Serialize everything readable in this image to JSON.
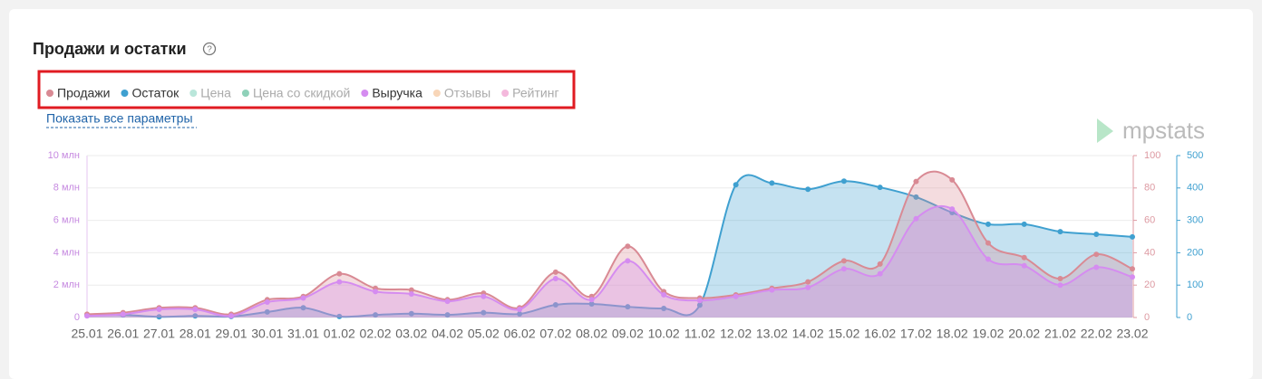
{
  "header": {
    "title": "Продажи и остатки",
    "help": "?",
    "link": "Показать все параметры",
    "logo": "mpstats"
  },
  "chart_data": {
    "type": "area",
    "categories": [
      "25.01",
      "26.01",
      "27.01",
      "28.01",
      "29.01",
      "30.01",
      "31.01",
      "01.02",
      "02.02",
      "03.02",
      "04.02",
      "05.02",
      "06.02",
      "07.02",
      "08.02",
      "09.02",
      "10.02",
      "11.02",
      "12.02",
      "13.02",
      "14.02",
      "15.02",
      "16.02",
      "17.02",
      "18.02",
      "19.02",
      "20.02",
      "21.02",
      "22.02",
      "23.02"
    ],
    "series": [
      {
        "name": "Продажи",
        "color": "#d98a94",
        "active": true,
        "axis": "y2",
        "values": [
          2,
          3,
          6,
          6,
          2,
          11,
          13,
          27,
          18,
          17,
          11,
          15,
          6,
          28,
          13,
          44,
          16,
          12,
          14,
          18,
          22,
          35,
          33,
          84,
          85,
          46,
          37,
          24,
          39,
          30
        ]
      },
      {
        "name": "Остаток",
        "color": "#3fa0d0",
        "active": true,
        "axis": "y3",
        "values": [
          8,
          8,
          2,
          5,
          3,
          17,
          30,
          3,
          8,
          12,
          8,
          15,
          11,
          39,
          42,
          33,
          28,
          38,
          410,
          415,
          396,
          421,
          402,
          372,
          324,
          288,
          288,
          265,
          257,
          249
        ]
      },
      {
        "name": "Цена",
        "color": "#b9e6da",
        "active": false
      },
      {
        "name": "Цена со скидкой",
        "color": "#8fd1b9",
        "active": false
      },
      {
        "name": "Выручка",
        "color": "#d58cf0",
        "active": true,
        "axis": "y",
        "values": [
          100000,
          200000,
          500000,
          500000,
          100000,
          950000,
          1200000,
          2200000,
          1600000,
          1450000,
          1000000,
          1300000,
          500000,
          2400000,
          1100000,
          3500000,
          1400000,
          1050000,
          1300000,
          1700000,
          1850000,
          3000000,
          2700000,
          6100000,
          6700000,
          3600000,
          3200000,
          2000000,
          3100000,
          2500000
        ]
      },
      {
        "name": "Отзывы",
        "color": "#f8d6b8",
        "active": false
      },
      {
        "name": "Рейтинг",
        "color": "#f4b8dc",
        "active": false
      }
    ],
    "ylim": [
      0,
      10000000
    ],
    "yticks": [
      0,
      {
        "value": 2000000,
        "label": "2 млн"
      },
      {
        "value": 4000000,
        "label": "4 млн"
      },
      {
        "value": 6000000,
        "label": "6 млн"
      },
      {
        "value": 8000000,
        "label": "8 млн"
      },
      {
        "value": 10000000,
        "label": "10 млн"
      }
    ],
    "y2lim": [
      0,
      100
    ],
    "y2ticks": [
      0,
      20,
      40,
      60,
      80,
      100
    ],
    "y3lim": [
      0,
      500
    ],
    "y3ticks": [
      0,
      100,
      200,
      300,
      400,
      500
    ],
    "grid": true
  }
}
